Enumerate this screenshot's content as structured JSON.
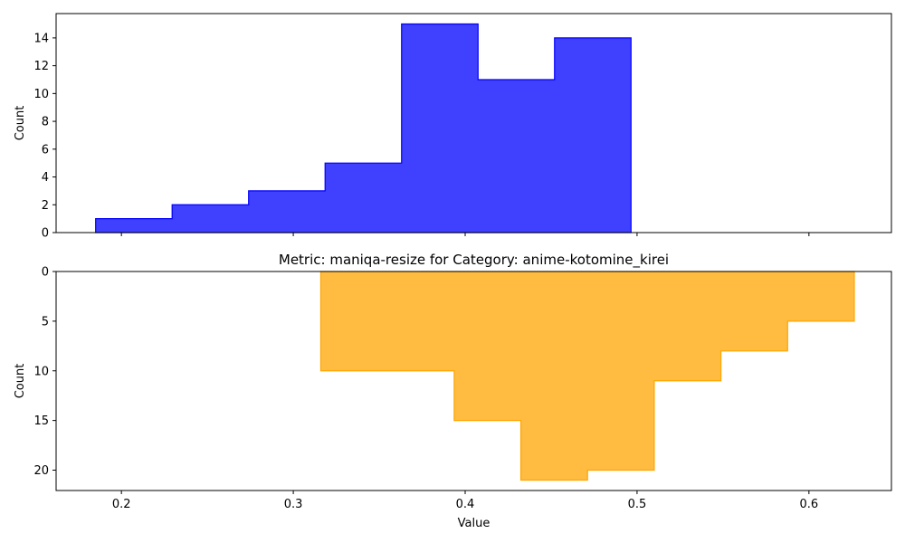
{
  "chart_data": [
    {
      "type": "histogram",
      "title": "",
      "xlabel": "",
      "ylabel": "Count",
      "color": "#0000ff",
      "alpha": 0.75,
      "orientation": "up",
      "xlim": [
        0.162,
        0.648
      ],
      "ylim": [
        0,
        15.75
      ],
      "yticks": [
        0,
        2,
        4,
        6,
        8,
        10,
        12,
        14
      ],
      "x_tick_labels_shown": false,
      "bin_edges": [
        0.185,
        0.2295,
        0.274,
        0.3185,
        0.363,
        0.4075,
        0.452,
        0.4965
      ],
      "counts": [
        1,
        2,
        3,
        5,
        15,
        11,
        14
      ]
    },
    {
      "type": "histogram",
      "title": "Metric: maniqa-resize for Category: anime-kotomine_kirei",
      "xlabel": "Value",
      "ylabel": "Count",
      "color": "#ffa500",
      "alpha": 0.75,
      "orientation": "down",
      "xlim": [
        0.162,
        0.648
      ],
      "ylim": [
        0,
        22.05
      ],
      "yticks": [
        0,
        5,
        10,
        15,
        20
      ],
      "bin_edges": [
        0.316,
        0.3548,
        0.3936,
        0.4324,
        0.4712,
        0.51,
        0.5488,
        0.5876,
        0.6264
      ],
      "counts": [
        10,
        10,
        15,
        21,
        20,
        11,
        8,
        5
      ]
    }
  ],
  "x_axis": {
    "ticks": [
      0.2,
      0.3,
      0.4,
      0.5,
      0.6
    ],
    "tick_labels": [
      "0.2",
      "0.3",
      "0.4",
      "0.5",
      "0.6"
    ]
  }
}
